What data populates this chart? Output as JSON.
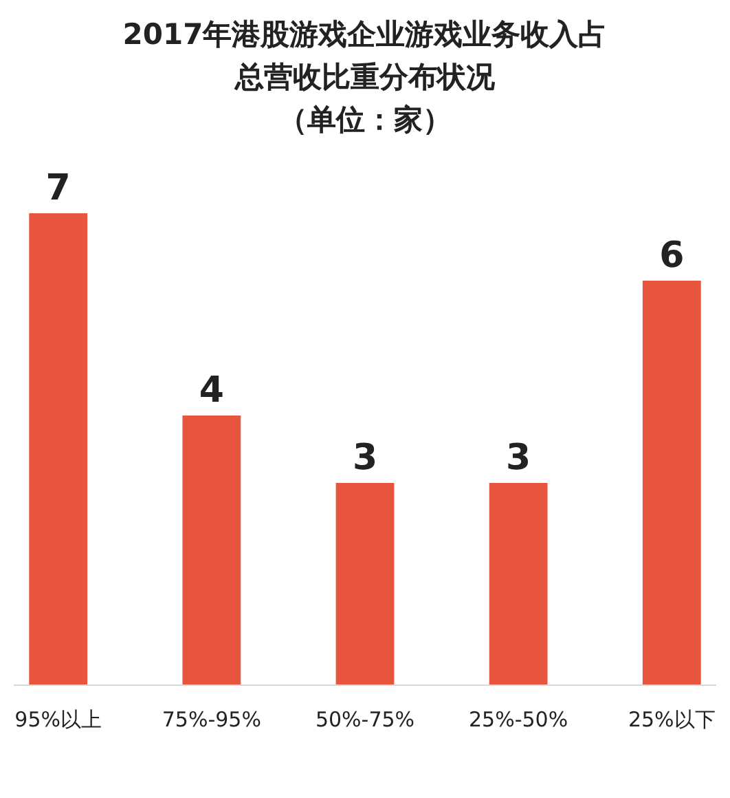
{
  "chart_data": {
    "type": "bar",
    "title": "2017年港股游戏企业游戏业务收入占总营收比重分布状况",
    "subtitle": "（单位：家）",
    "categories": [
      "95%以上",
      "75%-95%",
      "50%-75%",
      "25%-50%",
      "25%以下"
    ],
    "values": [
      7,
      4,
      3,
      3,
      6
    ],
    "color": "#e8553f",
    "data_labels": true
  }
}
